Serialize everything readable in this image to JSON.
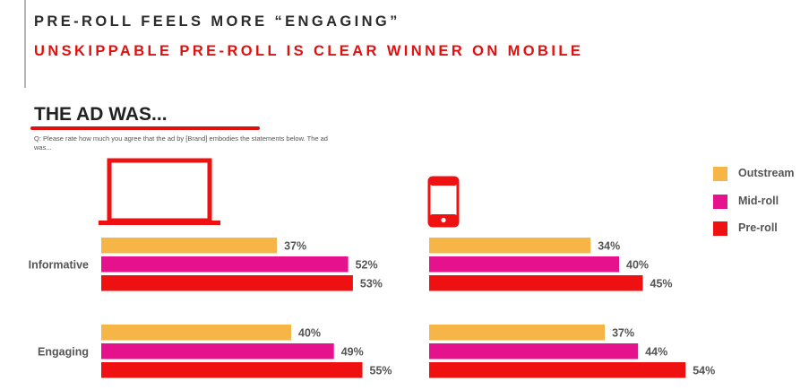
{
  "header": {
    "title": "PRE-ROLL FEELS MORE “ENGAGING”",
    "subtitle": "UNSKIPPABLE PRE-ROLL IS CLEAR WINNER ON MOBILE"
  },
  "section": {
    "title": "THE AD WAS...",
    "question": "Q: Please rate how much you agree that the ad by [Brand] embodies the statements below. The ad was..."
  },
  "colors": {
    "outstream": "#f5b547",
    "midroll": "#e6118c",
    "preroll": "#ef1111",
    "accent": "#e01010",
    "label": "#555555"
  },
  "icons": {
    "desktop": "laptop-icon",
    "mobile": "smartphone-icon"
  },
  "chart_data": [
    {
      "type": "bar",
      "orientation": "horizontal",
      "device": "laptop-icon",
      "categories": [
        "Informative",
        "Engaging"
      ],
      "series": [
        {
          "name": "Outstream",
          "values": [
            37,
            40
          ],
          "labels": [
            "37%",
            "40%"
          ]
        },
        {
          "name": "Mid-roll",
          "values": [
            52,
            49
          ],
          "labels": [
            "52%",
            "49%"
          ]
        },
        {
          "name": "Pre-roll",
          "values": [
            53,
            55
          ],
          "labels": [
            "53%",
            "55%"
          ]
        }
      ],
      "unit": "%",
      "legend": [
        "Outstream",
        "Mid-roll",
        "Pre-roll"
      ],
      "legend_position": "right"
    },
    {
      "type": "bar",
      "orientation": "horizontal",
      "device": "smartphone-icon",
      "categories": [
        "Informative",
        "Engaging"
      ],
      "series": [
        {
          "name": "Outstream",
          "values": [
            34,
            37
          ],
          "labels": [
            "34%",
            "37%"
          ]
        },
        {
          "name": "Mid-roll",
          "values": [
            40,
            44
          ],
          "labels": [
            "40%",
            "44%"
          ]
        },
        {
          "name": "Pre-roll",
          "values": [
            45,
            54
          ],
          "labels": [
            "45%",
            "54%"
          ]
        }
      ],
      "unit": "%",
      "legend": [
        "Outstream",
        "Mid-roll",
        "Pre-roll"
      ],
      "legend_position": "right"
    }
  ]
}
